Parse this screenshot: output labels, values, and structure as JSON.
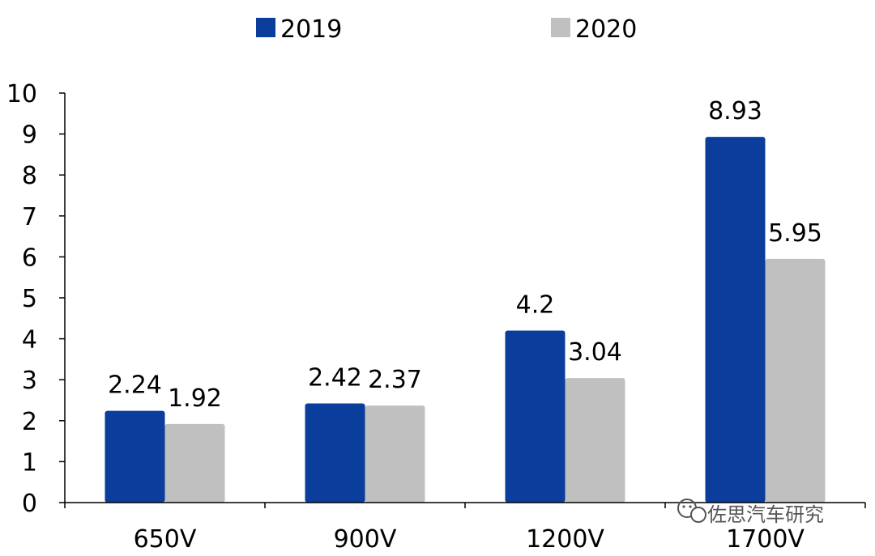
{
  "chart_data": {
    "type": "bar",
    "categories": [
      "650V",
      "900V",
      "1200V",
      "1700V"
    ],
    "series": [
      {
        "name": "2019",
        "values": [
          2.24,
          2.42,
          4.2,
          8.93
        ],
        "color": "#0a3d9c"
      },
      {
        "name": "2020",
        "values": [
          1.92,
          2.37,
          3.04,
          5.95
        ],
        "color": "#c0c0c0"
      }
    ],
    "data_labels": [
      [
        "2.24",
        "2.42",
        "4.2",
        "8.93"
      ],
      [
        "1.92",
        "2.37",
        "3.04",
        "5.95"
      ]
    ],
    "y_ticks": [
      "0",
      "1",
      "2",
      "3",
      "4",
      "5",
      "6",
      "7",
      "8",
      "9",
      "10"
    ],
    "ylim": [
      0,
      10
    ],
    "grid": false,
    "legend_position": "top-center"
  },
  "watermark": {
    "text": "佐思汽车研究",
    "icon": "wechat-icon"
  }
}
